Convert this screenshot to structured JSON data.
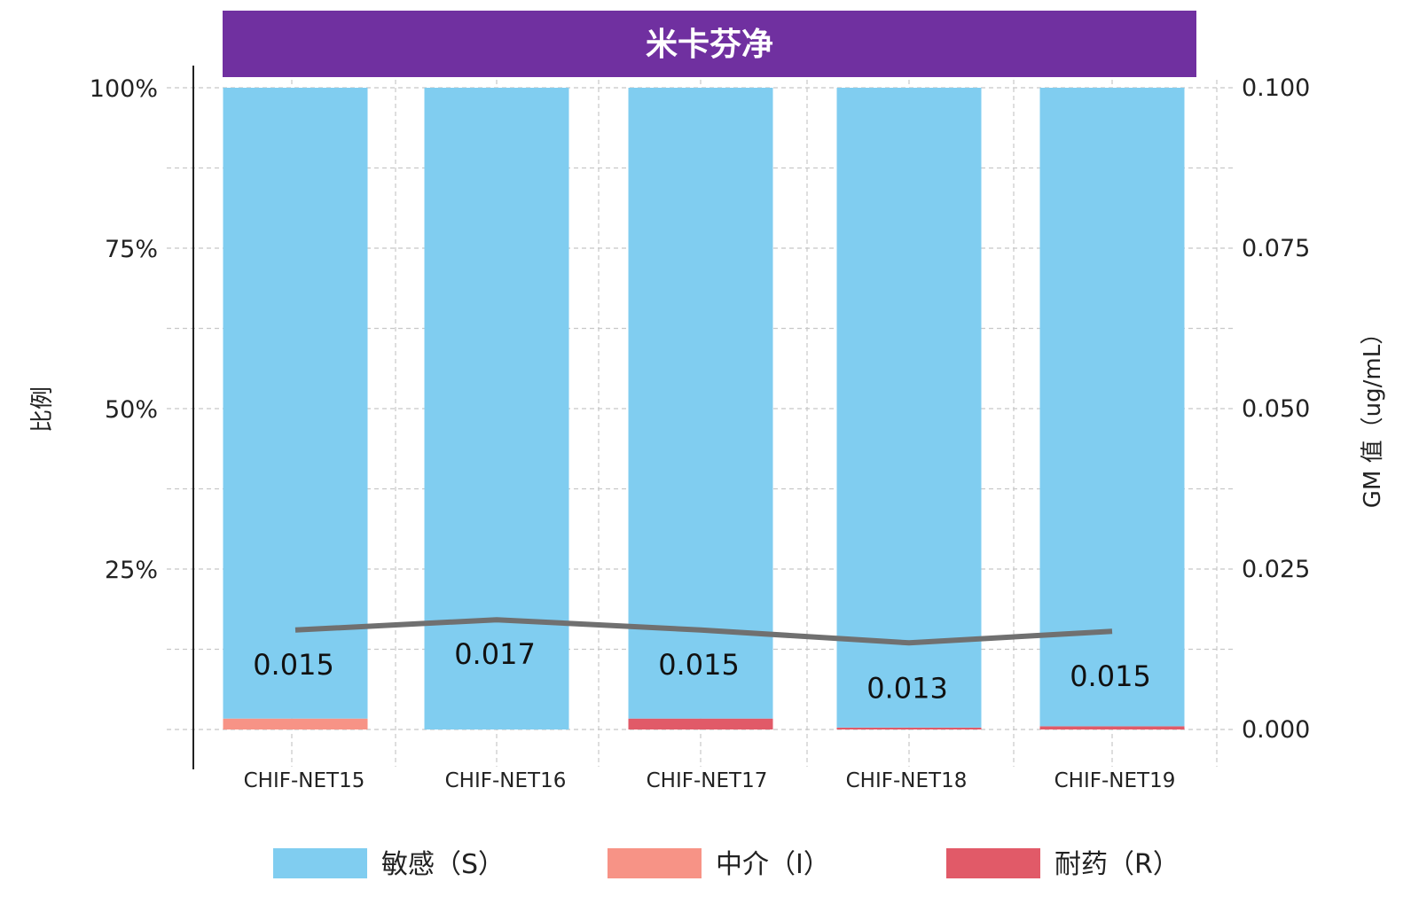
{
  "chart_data": {
    "type": "bar",
    "stacked": true,
    "title": "米卡芬净",
    "colors": {
      "title_bg": "#7030A0",
      "s": "#80CDF0",
      "i": "#F79386",
      "r": "#E15A68",
      "line": "#707070"
    },
    "categories": [
      "CHIF-NET15",
      "CHIF-NET16",
      "CHIF-NET17",
      "CHIF-NET18",
      "CHIF-NET19"
    ],
    "series": [
      {
        "name": "敏感（S）",
        "key": "s",
        "values": [
          98.3,
          100.0,
          98.3,
          99.7,
          99.5
        ]
      },
      {
        "name": "中介（I）",
        "key": "i",
        "values": [
          1.7,
          0.0,
          0.0,
          0.0,
          0.0
        ]
      },
      {
        "name": "耐药（R）",
        "key": "r",
        "values": [
          0.0,
          0.0,
          1.7,
          0.3,
          0.5
        ]
      }
    ],
    "gm_line": {
      "values": [
        0.0155,
        0.0171,
        0.0155,
        0.0135,
        0.0153
      ],
      "labels": [
        "0.015",
        "0.017",
        "0.015",
        "0.013",
        "0.015"
      ]
    },
    "ylabel_left": "比例",
    "ylabel_right": "GM 值（ug/mL）",
    "ylim_left": [
      0,
      100
    ],
    "ylim_right": [
      0,
      0.1
    ],
    "yticks_left": [
      "100%",
      "75%",
      "50%",
      "25%"
    ],
    "yticks_right": [
      "0.100",
      "0.075",
      "0.050",
      "0.025",
      "0.000"
    ],
    "grid": true,
    "legend_position": "bottom"
  }
}
